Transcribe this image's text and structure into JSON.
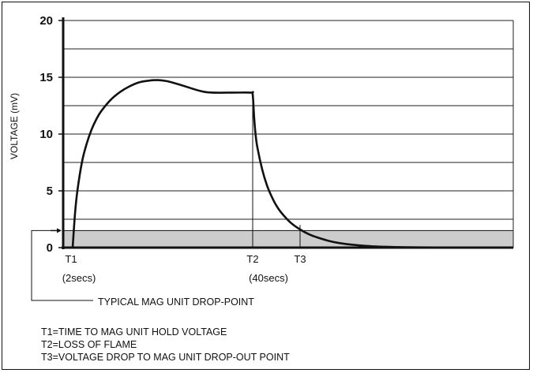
{
  "chart_data": {
    "type": "line",
    "ylabel": "VOLTAGE (mV)",
    "xlabel": "",
    "ylim": [
      0,
      20
    ],
    "y_ticks": [
      "0",
      "5",
      "10",
      "15",
      "20"
    ],
    "grid": true,
    "x_unit": "secs",
    "xlim": [
      0,
      95
    ],
    "series": [
      {
        "x": [
          2,
          2.5,
          3,
          4,
          5,
          6,
          7,
          8,
          10,
          12,
          14,
          16,
          18,
          20,
          22,
          25,
          30,
          35,
          39.6,
          40,
          40.3,
          40.6,
          41,
          42,
          43,
          44,
          45,
          46,
          48,
          50,
          52,
          54,
          56,
          58,
          60,
          63,
          66,
          70,
          75,
          80,
          85
        ],
        "y": [
          0,
          3.0,
          5.0,
          7.6,
          9.2,
          10.4,
          11.3,
          12.0,
          13.0,
          13.7,
          14.2,
          14.55,
          14.7,
          14.75,
          14.65,
          14.3,
          13.7,
          13.65,
          13.65,
          13.5,
          11.5,
          10.0,
          8.8,
          6.9,
          5.5,
          4.5,
          3.7,
          3.1,
          2.2,
          1.6,
          1.15,
          0.85,
          0.6,
          0.42,
          0.3,
          0.18,
          0.1,
          0.05,
          0.02,
          0.01,
          0.0
        ]
      }
    ],
    "shaded_band": {
      "ymin": 0,
      "ymax": 1.5
    },
    "markers": [
      {
        "label": "T1",
        "x": 2,
        "sublabel": "(2secs)"
      },
      {
        "label": "T2",
        "x": 40,
        "sublabel": "(40secs)"
      },
      {
        "label": "T3",
        "x": 50
      }
    ],
    "annotation": "TYPICAL MAG UNIT DROP-POINT",
    "notes": [
      "T1=TIME TO MAG UNIT HOLD VOLTAGE",
      "T2=LOSS OF FLAME",
      "T3=VOLTAGE DROP TO MAG UNIT DROP-OUT POINT"
    ],
    "colors": {
      "curve": "#111111",
      "band": "#cccccc",
      "grid": "#222222"
    }
  }
}
